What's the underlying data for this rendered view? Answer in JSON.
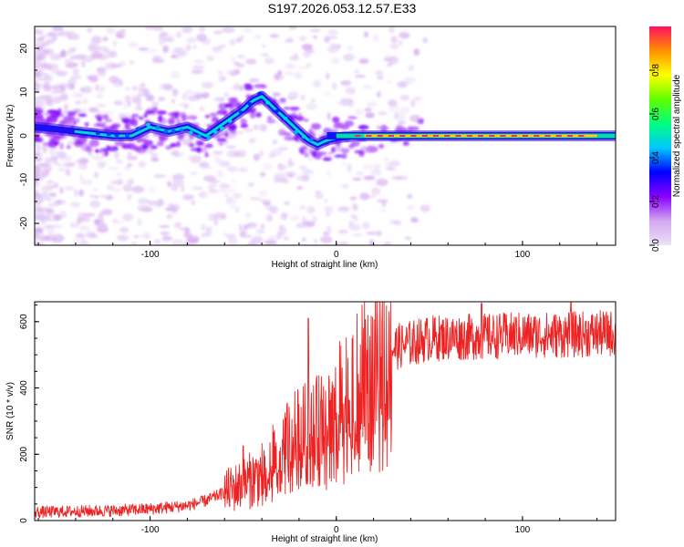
{
  "title": "S197.2026.053.12.57.E33",
  "chart_data": [
    {
      "type": "heatmap",
      "name": "spectrogram",
      "xlabel": "Height of straight line (km)",
      "ylabel": "Frequency (Hz)",
      "xlim": [
        -162,
        150
      ],
      "ylim": [
        -25,
        25
      ],
      "xticks": [
        -100,
        0,
        100
      ],
      "yticks": [
        -20,
        -10,
        0,
        10,
        20
      ],
      "colorbar": {
        "label": "Normalized spectral amplitude",
        "range": [
          0,
          1
        ],
        "ticks": [
          0.0,
          0.2,
          0.4,
          0.6,
          0.8
        ],
        "colors": [
          "#ece2f6",
          "#d4a8f0",
          "#8a00ff",
          "#0000ff",
          "#00c8ff",
          "#00ff80",
          "#60ff00",
          "#ffff00",
          "#ff9000",
          "#ff1060"
        ]
      },
      "ridge": {
        "x": [
          -162,
          -150,
          -140,
          -130,
          -120,
          -110,
          -100,
          -90,
          -80,
          -70,
          -60,
          -50,
          -45,
          -40,
          -35,
          -30,
          -25,
          -20,
          -15,
          -10,
          -5,
          0,
          10,
          20,
          40,
          60,
          80,
          100,
          120,
          140,
          150
        ],
        "y": [
          2,
          1.5,
          1,
          0.5,
          0,
          0,
          2,
          1,
          2,
          0,
          3,
          6,
          8,
          9,
          7,
          5,
          3,
          1,
          -1,
          -2,
          -1,
          -0.5,
          0,
          0,
          0,
          0,
          0,
          0,
          0,
          0,
          0
        ]
      }
    },
    {
      "type": "line",
      "name": "snr",
      "xlabel": "Height of straight line (km)",
      "ylabel": "SNR (10 * v/v)",
      "xlim": [
        -162,
        150
      ],
      "ylim": [
        0,
        660
      ],
      "xticks": [
        -100,
        0,
        100
      ],
      "yticks": [
        0,
        200,
        400,
        600
      ],
      "color": "#ee2222",
      "trend": {
        "x": [
          -162,
          -140,
          -120,
          -100,
          -80,
          -70,
          -60,
          -50,
          -40,
          -30,
          -20,
          -10,
          0,
          10,
          20,
          30,
          50,
          80,
          100,
          120,
          150
        ],
        "y": [
          25,
          28,
          30,
          35,
          45,
          60,
          85,
          110,
          140,
          200,
          250,
          270,
          330,
          390,
          440,
          520,
          550,
          555,
          560,
          560,
          565
        ]
      },
      "spikes": [
        {
          "x": -50,
          "y": 225
        },
        {
          "x": -15,
          "y": 610
        },
        {
          "x": 78,
          "y": 655
        },
        {
          "x": 126,
          "y": 660
        }
      ]
    }
  ]
}
